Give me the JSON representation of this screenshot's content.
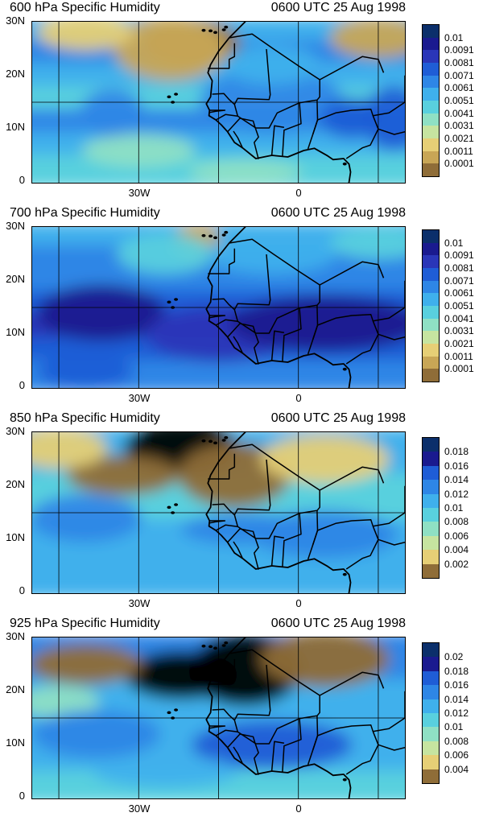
{
  "yticks": [
    "30N",
    "20N",
    "10N",
    "0"
  ],
  "xticks": [
    "30W",
    "0"
  ],
  "panels": [
    {
      "title": "600 hPa Specific Humidity",
      "time": "0600 UTC 25 Aug 1998",
      "colorbar": [
        "0.01",
        "0.0091",
        "0.0081",
        "0.0071",
        "0.0061",
        "0.0051",
        "0.0041",
        "0.0031",
        "0.0021",
        "0.0011",
        "0.0001"
      ],
      "colors": [
        "#0b2f6b",
        "#1a1a8f",
        "#2a36b8",
        "#1f5dd6",
        "#2e86e6",
        "#3fb0ec",
        "#59d0de",
        "#8fe0c4",
        "#c6e4a0",
        "#e6cf76",
        "#c8a656",
        "#8f6d38"
      ]
    },
    {
      "title": "700 hPa Specific Humidity",
      "time": "0600 UTC 25 Aug 1998",
      "colorbar": [
        "0.01",
        "0.0091",
        "0.0081",
        "0.0071",
        "0.0061",
        "0.0051",
        "0.0041",
        "0.0031",
        "0.0021",
        "0.0011",
        "0.0001"
      ],
      "colors": [
        "#0b2f6b",
        "#1a1a8f",
        "#2a36b8",
        "#1f5dd6",
        "#2e86e6",
        "#3fb0ec",
        "#59d0de",
        "#8fe0c4",
        "#c6e4a0",
        "#e6cf76",
        "#c8a656",
        "#8f6d38"
      ]
    },
    {
      "title": "850 hPa Specific Humidity",
      "time": "0600 UTC 25 Aug 1998",
      "colorbar": [
        "0.018",
        "0.016",
        "0.014",
        "0.012",
        "0.01",
        "0.008",
        "0.006",
        "0.004",
        "0.002"
      ],
      "colors": [
        "#0b2f6b",
        "#1a1a8f",
        "#1f5dd6",
        "#2e86e6",
        "#3fb0ec",
        "#59d0de",
        "#8fe0c4",
        "#c6e4a0",
        "#e6cf76",
        "#8f6d38"
      ]
    },
    {
      "title": "925 hPa Specific Humidity",
      "time": "0600 UTC 25 Aug 1998",
      "colorbar": [
        "0.02",
        "0.018",
        "0.016",
        "0.014",
        "0.012",
        "0.01",
        "0.008",
        "0.006",
        "0.004"
      ],
      "colors": [
        "#0b2f6b",
        "#1a1a8f",
        "#1f5dd6",
        "#2e86e6",
        "#3fb0ec",
        "#59d0de",
        "#8fe0c4",
        "#c6e4a0",
        "#e6cf76",
        "#8f6d38"
      ]
    }
  ]
}
